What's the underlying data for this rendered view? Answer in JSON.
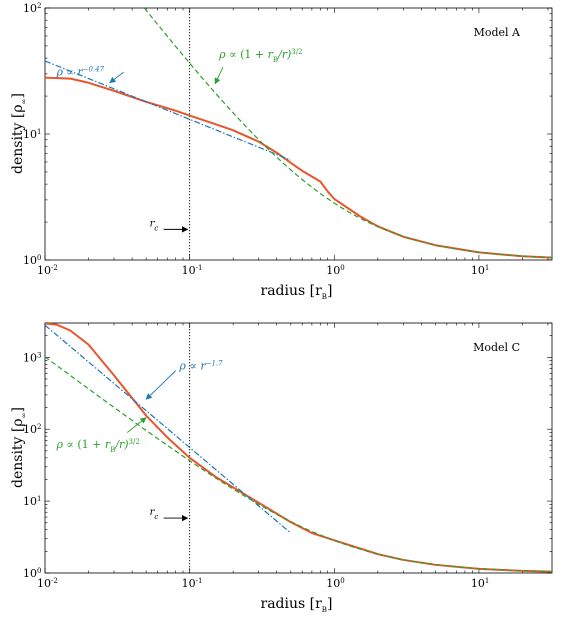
{
  "colors": {
    "simulation": "#e8552d",
    "powerlaw": "#1f77b4",
    "bondi": "#2ca02c",
    "core": "#000000"
  },
  "chart_data": [
    {
      "type": "line",
      "panel_label": "Model A",
      "xlabel": "radius [r_B]",
      "ylabel": "density [ρ∞]",
      "xscale": "log",
      "yscale": "log",
      "xlim": [
        0.01,
        32
      ],
      "ylim": [
        1,
        100
      ],
      "x_ticks": [
        {
          "value": 0.01,
          "base": "10",
          "exp": "-2"
        },
        {
          "value": 0.1,
          "base": "10",
          "exp": "-1"
        },
        {
          "value": 1,
          "base": "10",
          "exp": "0"
        },
        {
          "value": 10,
          "base": "10",
          "exp": "1"
        }
      ],
      "y_ticks": [
        {
          "value": 1,
          "base": "10",
          "exp": "0"
        },
        {
          "value": 10,
          "base": "10",
          "exp": "1"
        },
        {
          "value": 100,
          "base": "10",
          "exp": "2"
        }
      ],
      "core_radius": {
        "x": 0.1,
        "label": "r_c",
        "arrow_y": 1.75
      },
      "series": [
        {
          "role": "simulation",
          "style": "solid",
          "x": [
            0.01,
            0.015,
            0.02,
            0.03,
            0.05,
            0.08,
            0.1,
            0.15,
            0.2,
            0.3,
            0.4,
            0.5,
            0.6,
            0.7,
            0.8,
            0.9,
            1.0,
            1.5,
            2,
            3,
            5,
            10,
            20,
            32
          ],
          "y": [
            28,
            27.5,
            25.5,
            22,
            18,
            15.3,
            14,
            12,
            10.7,
            8.7,
            7.1,
            5.9,
            5.1,
            4.6,
            4.2,
            3.5,
            3.05,
            2.23,
            1.85,
            1.53,
            1.31,
            1.15,
            1.07,
            1.045
          ]
        },
        {
          "role": "powerlaw",
          "style": "dashdot",
          "label": "ρ ∝ r",
          "label_exp": "−0.47",
          "x": [
            0.01,
            0.5
          ],
          "y": [
            38,
            6.2
          ]
        },
        {
          "role": "bondi",
          "style": "dashed",
          "label": "ρ ∝ (1 + r",
          "label_mid": "B",
          "label_end": "/r)",
          "label_exp": "3/2",
          "fn": "bondi",
          "xfrom": 0.045,
          "xto": 32
        }
      ],
      "annotations": [
        {
          "role": "powerlaw",
          "text_at": [
            0.012,
            29
          ],
          "arrow_from": [
            0.035,
            31
          ],
          "arrow_to": [
            0.028,
            25.5
          ]
        },
        {
          "role": "bondi",
          "text_at": [
            0.16,
            40
          ],
          "arrow_from": [
            0.17,
            34
          ],
          "arrow_to": [
            0.15,
            25
          ]
        }
      ]
    },
    {
      "type": "line",
      "panel_label": "Model C",
      "xlabel": "radius [r_B]",
      "ylabel": "density [ρ∞]",
      "xscale": "log",
      "yscale": "log",
      "xlim": [
        0.01,
        32
      ],
      "ylim": [
        1,
        3000
      ],
      "x_ticks": [
        {
          "value": 0.01,
          "base": "10",
          "exp": "-2"
        },
        {
          "value": 0.1,
          "base": "10",
          "exp": "-1"
        },
        {
          "value": 1,
          "base": "10",
          "exp": "0"
        },
        {
          "value": 10,
          "base": "10",
          "exp": "1"
        }
      ],
      "y_ticks": [
        {
          "value": 1,
          "base": "10",
          "exp": "0"
        },
        {
          "value": 10,
          "base": "10",
          "exp": "1"
        },
        {
          "value": 100,
          "base": "10",
          "exp": "2"
        },
        {
          "value": 1000,
          "base": "10",
          "exp": "3"
        }
      ],
      "core_radius": {
        "x": 0.1,
        "label": "r_c",
        "arrow_y": 5.8
      },
      "series": [
        {
          "role": "simulation",
          "style": "solid",
          "x": [
            0.01,
            0.012,
            0.015,
            0.02,
            0.03,
            0.05,
            0.07,
            0.1,
            0.15,
            0.2,
            0.3,
            0.5,
            0.7,
            1.0,
            2,
            3,
            5,
            10,
            20,
            32
          ],
          "y": [
            2950,
            2850,
            2350,
            1500,
            560,
            155,
            77,
            40,
            22,
            15.5,
            9.5,
            5.1,
            3.6,
            2.85,
            1.83,
            1.52,
            1.3,
            1.14,
            1.07,
            1.045
          ]
        },
        {
          "role": "powerlaw",
          "style": "dashdot",
          "label": "ρ ∝ r",
          "label_exp": "−1.7",
          "x": [
            0.01,
            0.5
          ],
          "y": [
            2800,
            3.6
          ]
        },
        {
          "role": "bondi",
          "style": "dashed",
          "label": "ρ ∝ (1 + r",
          "label_mid": "B",
          "label_end": "/r)",
          "label_exp": "3/2",
          "fn": "bondi",
          "xfrom": 0.01,
          "xto": 32
        }
      ],
      "annotations": [
        {
          "role": "powerlaw",
          "text_at": [
            0.085,
            680
          ],
          "arrow_from": [
            0.08,
            650
          ],
          "arrow_to": [
            0.05,
            260
          ]
        },
        {
          "role": "bondi",
          "text_at": [
            0.012,
            55
          ],
          "arrow_from": [
            0.037,
            90
          ],
          "arrow_to": [
            0.05,
            145
          ]
        }
      ]
    }
  ]
}
